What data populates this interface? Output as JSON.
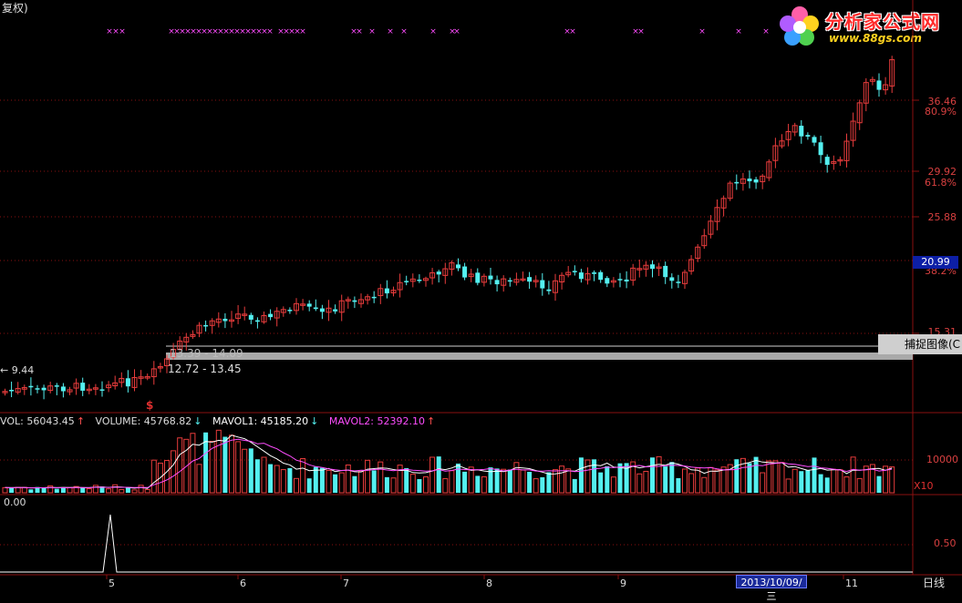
{
  "header": {
    "mode_label": "复权)"
  },
  "logo": {
    "title": "分析家公式网",
    "url": "www.88gs.com"
  },
  "main_panel": {
    "axis_labels": [
      {
        "text": "36.46",
        "color": "#d84040"
      },
      {
        "text": "80.9%",
        "color": "#d84040"
      },
      {
        "text": "29.92",
        "color": "#d84040"
      },
      {
        "text": "61.8%",
        "color": "#d84040"
      },
      {
        "text": "25.88",
        "color": "#d84040"
      },
      {
        "text": "38.2%",
        "color": "#d84040"
      },
      {
        "text": "15.31",
        "color": "#d84040"
      }
    ],
    "current_price": "20.99",
    "capture_button": "捕捉图像(C",
    "range_label_1": "12.72 - 13.45",
    "range_label_2": "13.39 - 14.09",
    "low_label": "← 9.44",
    "signal_marker": "$"
  },
  "volume_panel": {
    "vol": "VOL: 56043.45",
    "volume": "VOLUME: 45768.82",
    "mavol1": "MAVOL1: 45185.20",
    "mavol2": "MAVOL2: 52392.10",
    "axis_label": "10000",
    "scale_label": "X10"
  },
  "indicator_panel": {
    "value_label": "0.00",
    "axis_label": "0.50"
  },
  "time_axis": {
    "months": [
      "5",
      "6",
      "7",
      "8",
      "9",
      "11"
    ],
    "cursor_date": "2013/10/09/三",
    "period": "日线"
  },
  "colors": {
    "up": "#e83c3c",
    "down": "#54f0f0",
    "grid": "#8a1010",
    "signal": "#ff4dff"
  }
}
